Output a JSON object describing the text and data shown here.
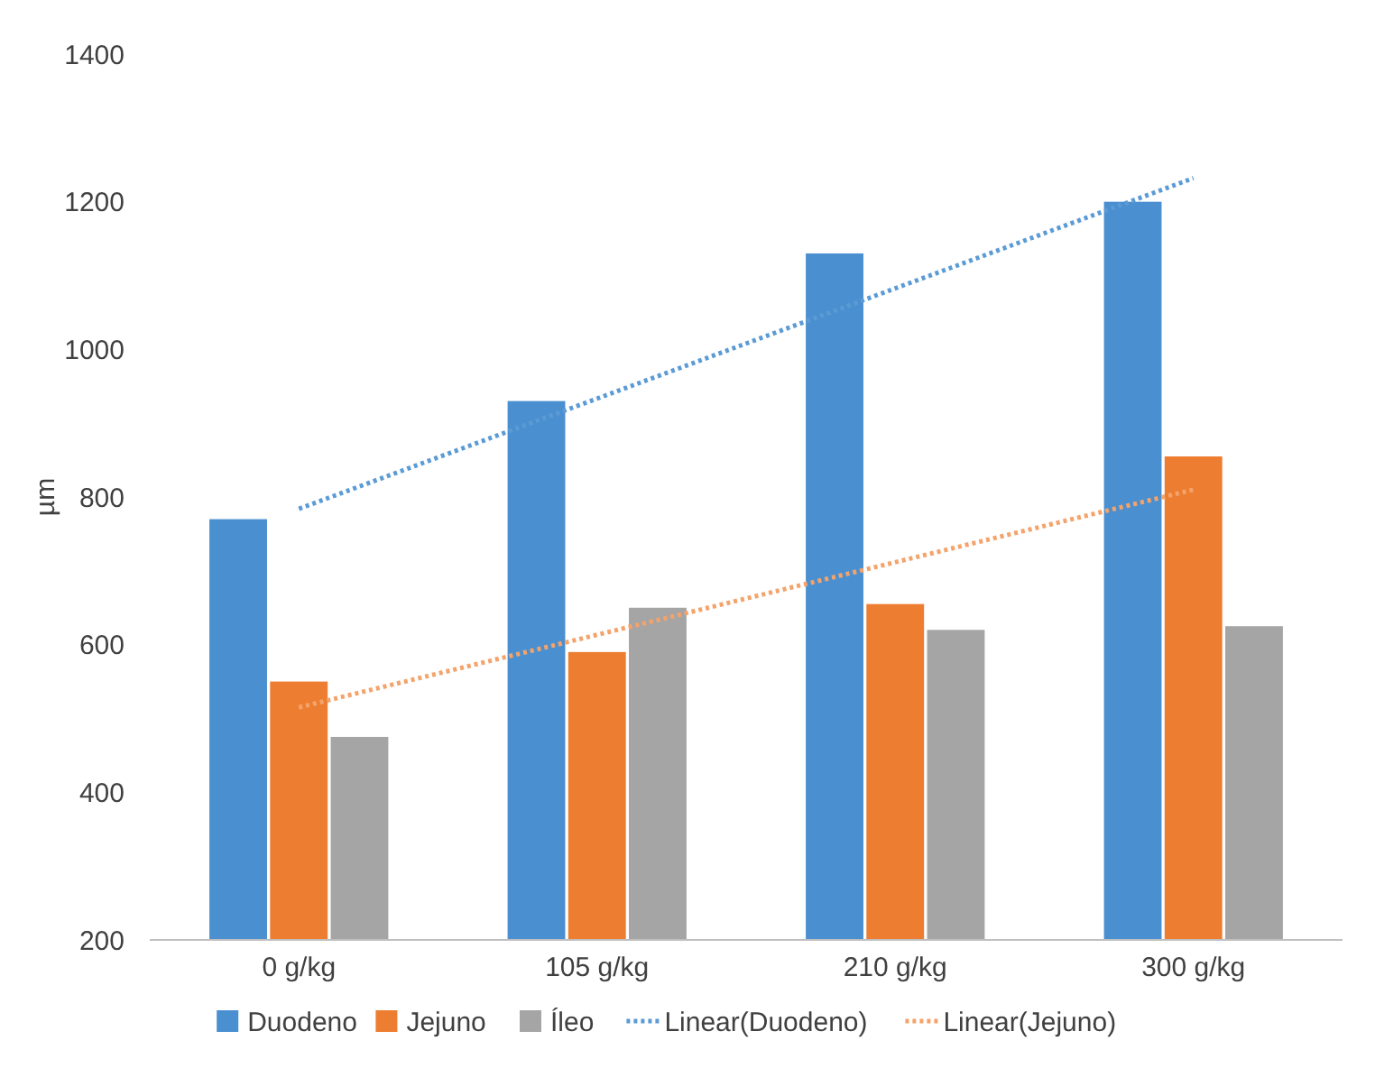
{
  "chart_data": {
    "type": "bar",
    "ylabel": "µm",
    "categories": [
      "0 g/kg",
      "105 g/kg",
      "210 g/kg",
      "300 g/kg"
    ],
    "series": [
      {
        "name": "Duodeno",
        "color": "#4a8fd0",
        "values": [
          770,
          930,
          1130,
          1200
        ]
      },
      {
        "name": "Jejuno",
        "color": "#ed7d31",
        "values": [
          550,
          590,
          655,
          855
        ]
      },
      {
        "name": "Íleo",
        "color": "#a5a5a5",
        "values": [
          475,
          650,
          620,
          625
        ]
      },
      {
        "name": "Linear(Duodeno)",
        "type": "line",
        "line_style": "dotted",
        "color": "#5b9bd5",
        "x": [
          "0 g/kg",
          "300 g/kg"
        ],
        "values": [
          784,
          1232
        ]
      },
      {
        "name": "Linear(Jejuno)",
        "type": "line",
        "line_style": "dotted",
        "color": "#f4a36b",
        "x": [
          "0 g/kg",
          "300 g/kg"
        ],
        "values": [
          515,
          810
        ]
      }
    ],
    "ylim": [
      200,
      1400
    ],
    "yticks": [
      200,
      400,
      600,
      800,
      1000,
      1200,
      1400
    ],
    "grid": false,
    "legend": "bottom"
  }
}
